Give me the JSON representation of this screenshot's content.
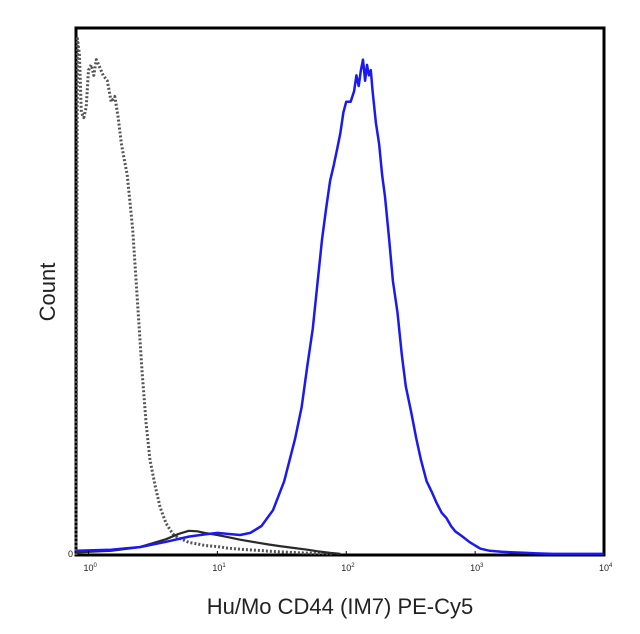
{
  "chart_data": {
    "type": "line",
    "title": "",
    "xlabel": "Hu/Mo CD44 (IM7) PE-Cy5",
    "ylabel": "Count",
    "x_scale": "log",
    "xlim": [
      0.8,
      10000
    ],
    "ylim": [
      0,
      100
    ],
    "grid": false,
    "legend": "none",
    "x_ticks": [
      {
        "value": 1,
        "base": "10",
        "exp": "0"
      },
      {
        "value": 10,
        "base": "10",
        "exp": "1"
      },
      {
        "value": 100,
        "base": "10",
        "exp": "2"
      },
      {
        "value": 1000,
        "base": "10",
        "exp": "3"
      },
      {
        "value": 10000,
        "base": "10",
        "exp": "4"
      }
    ],
    "y_ticks": [
      {
        "value": 0,
        "label": "0"
      }
    ],
    "series": [
      {
        "style": "dotted",
        "color": "#555555",
        "x": [
          0.8,
          0.82,
          0.85,
          0.88,
          0.92,
          0.96,
          1.0,
          1.05,
          1.1,
          1.15,
          1.2,
          1.3,
          1.4,
          1.5,
          1.6,
          1.7,
          1.8,
          2.0,
          2.2,
          2.4,
          2.6,
          2.8,
          3.0,
          3.3,
          3.6,
          4.0,
          4.5,
          5.0,
          5.5,
          6.0,
          7.0,
          8.0,
          10,
          12,
          15,
          20,
          30,
          45,
          60,
          80
        ],
        "y": [
          0,
          98,
          95,
          84,
          83,
          85,
          92,
          93,
          91,
          94,
          93,
          91,
          90,
          86,
          87,
          83,
          78,
          72,
          62,
          48,
          35,
          25,
          18,
          13,
          9,
          6,
          4,
          3.2,
          2.8,
          2.4,
          2.1,
          1.8,
          1.6,
          1.3,
          1.1,
          0.9,
          0.6,
          0.4,
          0.3,
          0.2
        ]
      },
      {
        "style": "solid",
        "color": "#2a2a2a",
        "x": [
          0.8,
          1.5,
          2.5,
          4.0,
          5.0,
          6.0,
          7.0,
          8.0,
          10,
          12,
          15,
          20,
          25,
          30,
          40,
          50,
          60,
          75,
          90
        ],
        "y": [
          0.5,
          0.8,
          1.5,
          3.0,
          4.0,
          4.6,
          4.5,
          4.2,
          3.8,
          3.4,
          2.9,
          2.4,
          2.0,
          1.7,
          1.3,
          1.0,
          0.7,
          0.4,
          0.2
        ]
      },
      {
        "style": "solid",
        "color": "#1a1af0",
        "x": [
          0.8,
          1.5,
          2.5,
          4.0,
          6.0,
          8.0,
          10,
          12,
          15,
          18,
          22,
          27,
          33,
          40,
          45,
          50,
          55,
          60,
          65,
          70,
          75,
          80,
          85,
          90,
          95,
          100,
          108,
          115,
          120,
          125,
          130,
          135,
          140,
          145,
          150,
          155,
          160,
          170,
          180,
          190,
          200,
          215,
          230,
          250,
          270,
          290,
          320,
          350,
          380,
          420,
          460,
          500,
          550,
          600,
          650,
          700,
          800,
          900,
          1000,
          1100,
          1300,
          1600,
          2000,
          2500,
          3000,
          4000,
          6000,
          10000
        ],
        "y": [
          0.8,
          1.0,
          1.5,
          2.5,
          3.5,
          3.9,
          4.2,
          4.0,
          3.8,
          4.2,
          5.5,
          8.5,
          14,
          22,
          28,
          36,
          43,
          52,
          60,
          66,
          71,
          74,
          77,
          80,
          84,
          86,
          86,
          88,
          91,
          89,
          92,
          94,
          90,
          93,
          91,
          92,
          88,
          82,
          78,
          72,
          68,
          60,
          52,
          46,
          38,
          32,
          27,
          22,
          18,
          14,
          12,
          10,
          8,
          7,
          5.5,
          4.5,
          3.5,
          2.5,
          1.8,
          1.2,
          0.8,
          0.6,
          0.5,
          0.4,
          0.3,
          0.2,
          0.2,
          0.2
        ]
      }
    ]
  }
}
